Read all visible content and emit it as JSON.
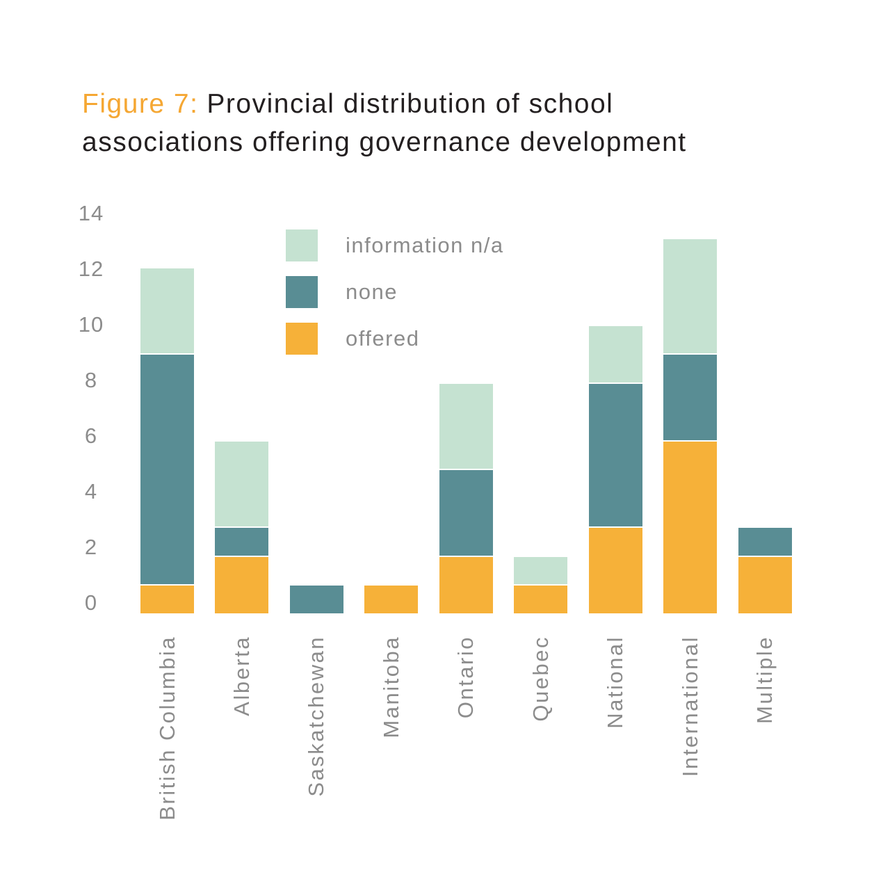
{
  "title": {
    "prefix": "Figure 7:",
    "line1": "Provincial distribution of school",
    "line2": "associations offering governance development"
  },
  "colors": {
    "offered": "#f6b139",
    "none": "#598d94",
    "information_na": "#c5e2d1",
    "title_accent": "#f5a733",
    "title_text": "#231f20",
    "axis_text": "#8c8c8c",
    "background": "#ffffff"
  },
  "chart_data": {
    "type": "bar",
    "stacked": true,
    "title": "Figure 7: Provincial distribution of school associations offering governance development",
    "categories": [
      "British Columbia",
      "Alberta",
      "Saskatchewan",
      "Manitoba",
      "Ontario",
      "Quebec",
      "National",
      "International",
      "Multiple"
    ],
    "series": [
      {
        "name": "offered",
        "color": "#f6b139",
        "values": [
          1,
          2,
          0,
          1,
          2,
          1,
          3,
          6,
          2
        ]
      },
      {
        "name": "none",
        "color": "#598d94",
        "values": [
          8,
          1,
          1,
          0,
          3,
          0,
          5,
          3,
          1
        ]
      },
      {
        "name": "information n/a",
        "color": "#c5e2d1",
        "values": [
          3,
          3,
          0,
          0,
          3,
          1,
          2,
          4,
          0
        ]
      }
    ],
    "totals": [
      12,
      6,
      1,
      1,
      8,
      2,
      10,
      13,
      3
    ],
    "legend": [
      {
        "label": "information n/a",
        "color": "#c5e2d1"
      },
      {
        "label": "none",
        "color": "#598d94"
      },
      {
        "label": "offered",
        "color": "#f6b139"
      }
    ],
    "legend_position": "upper-center-inside",
    "xlabel": "",
    "ylabel": "",
    "yticks": [
      0,
      2,
      4,
      6,
      8,
      10,
      12,
      14
    ],
    "ylim": [
      0,
      14
    ],
    "grid": false
  }
}
